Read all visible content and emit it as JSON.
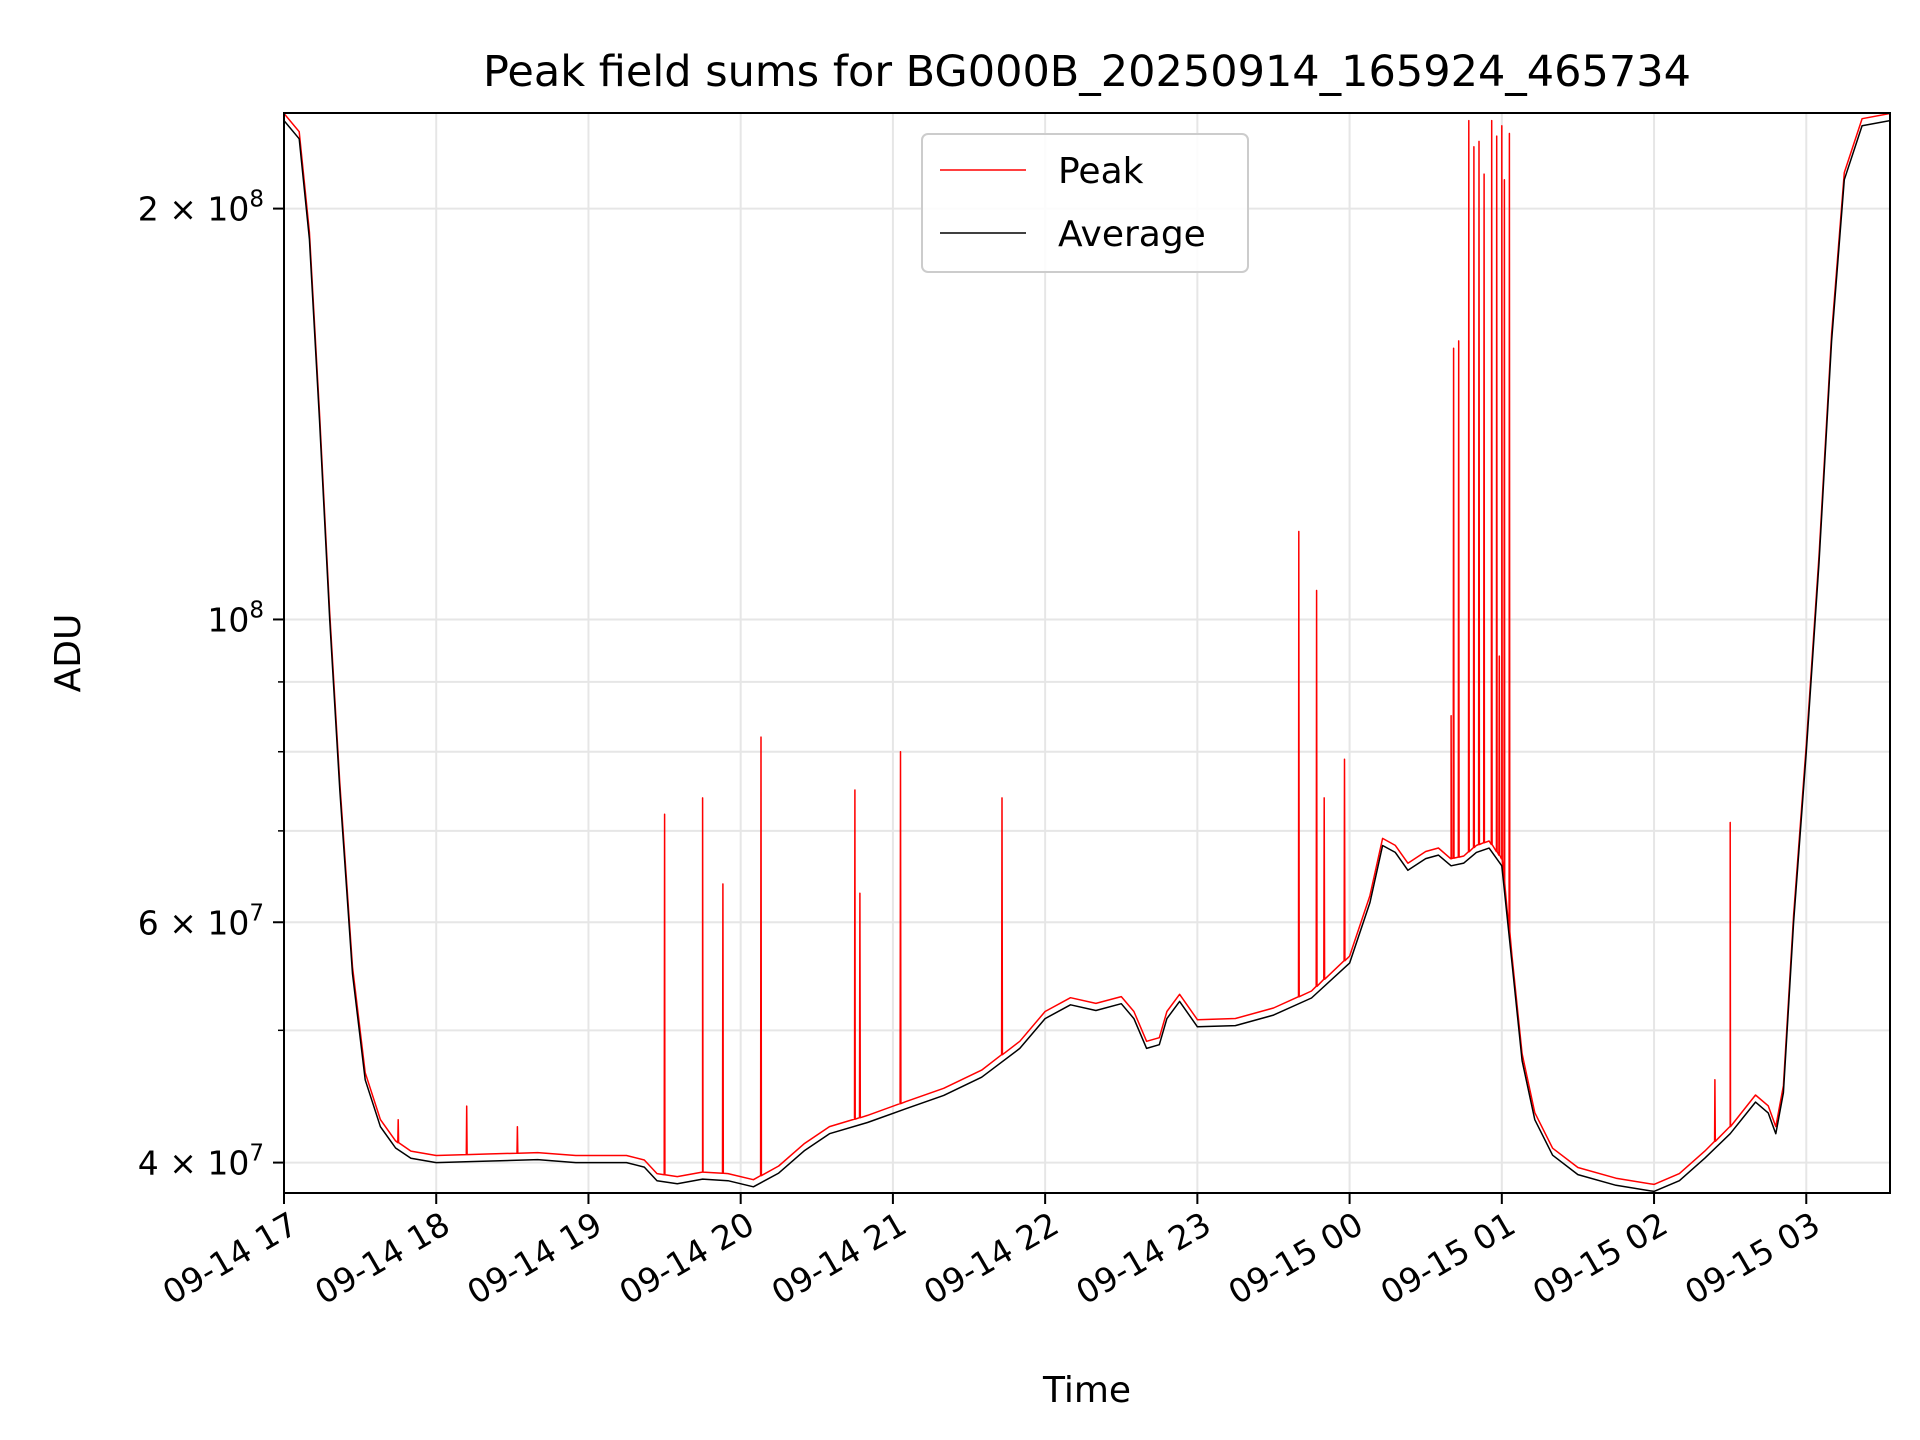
{
  "chart_data": {
    "type": "line",
    "title": "Peak field sums for BG000B_20250914_165924_465734",
    "xlabel": "Time",
    "ylabel": "ADU",
    "yscale": "log",
    "ylim": [
      38000000,
      235000000
    ],
    "xlim": [
      "2025-09-14 17:00",
      "2025-09-15 03:33"
    ],
    "grid": true,
    "legend": {
      "position": "upper center",
      "entries": [
        "Peak",
        "Average"
      ]
    },
    "x_ticks": [
      "09-14 17",
      "09-14 18",
      "09-14 19",
      "09-14 20",
      "09-14 21",
      "09-14 22",
      "09-14 23",
      "09-15 00",
      "09-15 01",
      "09-15 02",
      "09-15 03"
    ],
    "y_ticks": [
      {
        "value": 40000000,
        "mantissa": "4",
        "exponent": "7"
      },
      {
        "value": 60000000,
        "mantissa": "6",
        "exponent": "7"
      },
      {
        "value": 100000000,
        "mantissa": "",
        "exponent": "8"
      },
      {
        "value": 200000000,
        "mantissa": "2",
        "exponent": "8"
      }
    ],
    "series": [
      {
        "name": "Average",
        "color": "#000000",
        "points": [
          [
            "2025-09-14 17:00",
            232000000
          ],
          [
            "2025-09-14 17:06",
            225000000
          ],
          [
            "2025-09-14 17:10",
            190000000
          ],
          [
            "2025-09-14 17:14",
            140000000
          ],
          [
            "2025-09-14 17:18",
            100000000
          ],
          [
            "2025-09-14 17:22",
            75000000
          ],
          [
            "2025-09-14 17:27",
            55000000
          ],
          [
            "2025-09-14 17:32",
            46000000
          ],
          [
            "2025-09-14 17:38",
            42500000
          ],
          [
            "2025-09-14 17:44",
            41000000
          ],
          [
            "2025-09-14 17:50",
            40300000
          ],
          [
            "2025-09-14 18:00",
            40000000
          ],
          [
            "2025-09-14 18:20",
            40100000
          ],
          [
            "2025-09-14 18:40",
            40200000
          ],
          [
            "2025-09-14 18:55",
            40000000
          ],
          [
            "2025-09-14 19:15",
            40000000
          ],
          [
            "2025-09-14 19:22",
            39700000
          ],
          [
            "2025-09-14 19:27",
            38800000
          ],
          [
            "2025-09-14 19:35",
            38600000
          ],
          [
            "2025-09-14 19:45",
            38900000
          ],
          [
            "2025-09-14 19:55",
            38800000
          ],
          [
            "2025-09-14 20:05",
            38400000
          ],
          [
            "2025-09-14 20:15",
            39300000
          ],
          [
            "2025-09-14 20:25",
            40800000
          ],
          [
            "2025-09-14 20:35",
            42000000
          ],
          [
            "2025-09-14 20:50",
            42800000
          ],
          [
            "2025-09-14 21:05",
            43800000
          ],
          [
            "2025-09-14 21:20",
            44800000
          ],
          [
            "2025-09-14 21:35",
            46200000
          ],
          [
            "2025-09-14 21:50",
            48500000
          ],
          [
            "2025-09-14 22:00",
            51000000
          ],
          [
            "2025-09-14 22:10",
            52200000
          ],
          [
            "2025-09-14 22:20",
            51700000
          ],
          [
            "2025-09-14 22:30",
            52300000
          ],
          [
            "2025-09-14 22:35",
            51000000
          ],
          [
            "2025-09-14 22:40",
            48500000
          ],
          [
            "2025-09-14 22:45",
            48800000
          ],
          [
            "2025-09-14 22:48",
            51000000
          ],
          [
            "2025-09-14 22:53",
            52500000
          ],
          [
            "2025-09-14 23:00",
            50300000
          ],
          [
            "2025-09-14 23:15",
            50400000
          ],
          [
            "2025-09-14 23:30",
            51300000
          ],
          [
            "2025-09-14 23:45",
            52800000
          ],
          [
            "2025-09-15 00:00",
            56000000
          ],
          [
            "2025-09-15 00:08",
            62000000
          ],
          [
            "2025-09-15 00:13",
            68300000
          ],
          [
            "2025-09-15 00:18",
            67500000
          ],
          [
            "2025-09-15 00:23",
            65500000
          ],
          [
            "2025-09-15 00:30",
            66800000
          ],
          [
            "2025-09-15 00:35",
            67200000
          ],
          [
            "2025-09-15 00:40",
            66000000
          ],
          [
            "2025-09-15 00:45",
            66300000
          ],
          [
            "2025-09-15 00:50",
            67500000
          ],
          [
            "2025-09-15 00:55",
            68000000
          ],
          [
            "2025-09-15 01:00",
            66000000
          ],
          [
            "2025-09-15 01:04",
            56000000
          ],
          [
            "2025-09-15 01:08",
            47500000
          ],
          [
            "2025-09-15 01:13",
            43000000
          ],
          [
            "2025-09-15 01:20",
            40500000
          ],
          [
            "2025-09-15 01:30",
            39200000
          ],
          [
            "2025-09-15 01:45",
            38500000
          ],
          [
            "2025-09-15 02:00",
            38100000
          ],
          [
            "2025-09-15 02:10",
            38800000
          ],
          [
            "2025-09-15 02:20",
            40300000
          ],
          [
            "2025-09-15 02:30",
            42000000
          ],
          [
            "2025-09-15 02:40",
            44300000
          ],
          [
            "2025-09-15 02:45",
            43500000
          ],
          [
            "2025-09-15 02:48",
            42000000
          ],
          [
            "2025-09-15 02:51",
            45000000
          ],
          [
            "2025-09-15 02:55",
            60000000
          ],
          [
            "2025-09-15 03:00",
            80000000
          ],
          [
            "2025-09-15 03:05",
            110000000
          ],
          [
            "2025-09-15 03:10",
            160000000
          ],
          [
            "2025-09-15 03:15",
            210000000
          ],
          [
            "2025-09-15 03:22",
            230000000
          ],
          [
            "2025-09-15 03:33",
            232000000
          ]
        ]
      },
      {
        "name": "Peak",
        "color": "#ff0000",
        "spikes": [
          [
            "2025-09-14 17:45",
            43000000
          ],
          [
            "2025-09-14 18:12",
            44000000
          ],
          [
            "2025-09-14 18:32",
            42500000
          ],
          [
            "2025-09-14 19:30",
            72000000
          ],
          [
            "2025-09-14 19:45",
            74000000
          ],
          [
            "2025-09-14 19:53",
            64000000
          ],
          [
            "2025-09-14 20:08",
            82000000
          ],
          [
            "2025-09-14 20:45",
            75000000
          ],
          [
            "2025-09-14 20:47",
            63000000
          ],
          [
            "2025-09-14 21:03",
            80000000
          ],
          [
            "2025-09-14 21:43",
            74000000
          ],
          [
            "2025-09-14 23:40",
            116000000
          ],
          [
            "2025-09-14 23:47",
            105000000
          ],
          [
            "2025-09-14 23:50",
            74000000
          ],
          [
            "2025-09-14 23:58",
            79000000
          ],
          [
            "2025-09-15 00:40",
            85000000
          ],
          [
            "2025-09-15 00:41",
            158000000
          ],
          [
            "2025-09-15 00:43",
            160000000
          ],
          [
            "2025-09-15 00:47",
            232000000
          ],
          [
            "2025-09-15 00:49",
            222000000
          ],
          [
            "2025-09-15 00:51",
            224000000
          ],
          [
            "2025-09-15 00:53",
            212000000
          ],
          [
            "2025-09-15 00:56",
            232000000
          ],
          [
            "2025-09-15 00:58",
            226000000
          ],
          [
            "2025-09-15 00:59",
            94000000
          ],
          [
            "2025-09-15 01:00",
            230000000
          ],
          [
            "2025-09-15 01:01",
            210000000
          ],
          [
            "2025-09-15 01:03",
            227000000
          ],
          [
            "2025-09-15 02:24",
            46000000
          ],
          [
            "2025-09-15 02:30",
            71000000
          ]
        ]
      }
    ]
  }
}
